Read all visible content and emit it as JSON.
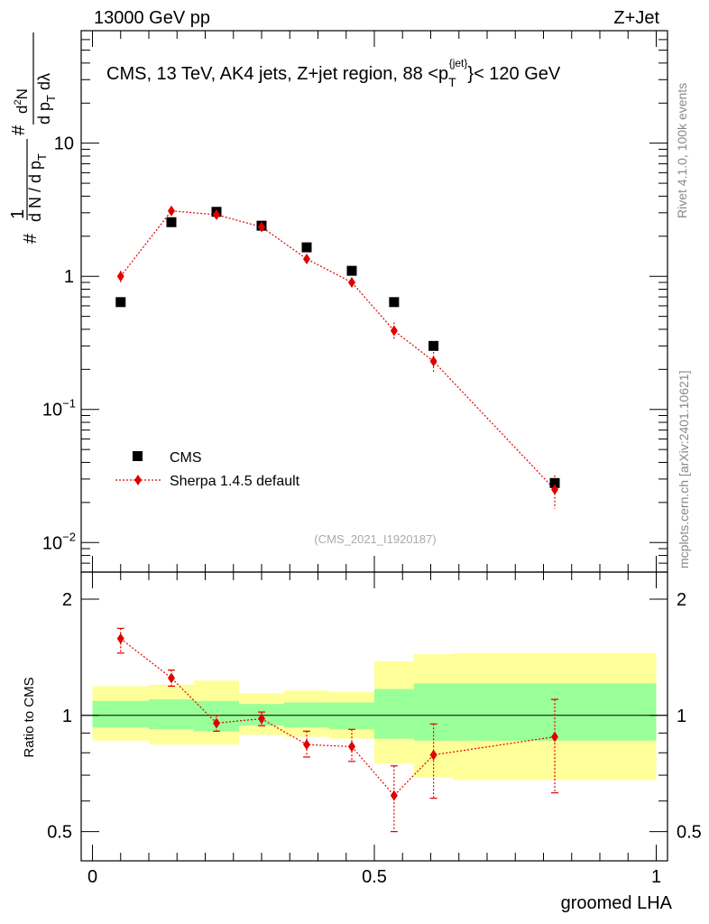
{
  "header": {
    "left": "13000 GeV pp",
    "right": "Z+Jet"
  },
  "side_labels": {
    "rivet": "Rivet 4.1.0,  100k events",
    "mcplots": "mcplots.cern.ch [arXiv:2401.10621]"
  },
  "chart_data": [
    {
      "type": "scatter",
      "title_main": "CMS, 13 TeV, AK4 jets, Z+jet region, 88 <p",
      "title_sub": "T",
      "title_sup": "{jet}",
      "title_end": "}< 120 GeV",
      "ylabel": "1/N dN/dp_T d²N/dp_T dλ",
      "yscale": "log",
      "ylim": [
        0.006,
        70
      ],
      "xlim": [
        -0.02,
        1.02
      ],
      "y_tick_labels": [
        {
          "value": 0.01,
          "base": "10",
          "exp": "−2"
        },
        {
          "value": 0.1,
          "base": "10",
          "exp": "−1"
        },
        {
          "value": 1,
          "base": "1",
          "exp": ""
        },
        {
          "value": 10,
          "base": "10",
          "exp": ""
        }
      ],
      "watermark": "(CMS_2021_I1920187)",
      "legend": {
        "position": "bottom-left",
        "cms": "CMS",
        "sherpa": "Sherpa 1.4.5 default"
      },
      "series": [
        {
          "name": "CMS",
          "x": [
            0.05,
            0.14,
            0.22,
            0.3,
            0.38,
            0.46,
            0.535,
            0.605,
            0.82
          ],
          "y": [
            0.64,
            2.55,
            3.05,
            2.4,
            1.65,
            1.1,
            0.64,
            0.3,
            0.028
          ]
        },
        {
          "name": "Sherpa 1.4.5 default",
          "x": [
            0.05,
            0.14,
            0.22,
            0.3,
            0.38,
            0.46,
            0.535,
            0.605,
            0.82
          ],
          "y": [
            1.0,
            3.1,
            2.9,
            2.35,
            1.35,
            0.9,
            0.39,
            0.23,
            0.025
          ],
          "err_lo": [
            0.9,
            2.9,
            2.75,
            2.22,
            1.25,
            0.82,
            0.34,
            0.19,
            0.018
          ],
          "err_hi": [
            1.1,
            3.3,
            3.05,
            2.48,
            1.45,
            0.98,
            0.45,
            0.27,
            0.032
          ]
        }
      ]
    },
    {
      "type": "scatter",
      "ylabel": "Ratio to CMS",
      "xlabel": "groomed LHA",
      "yscale": "log",
      "ylim": [
        0.42,
        2.35
      ],
      "xlim": [
        -0.02,
        1.02
      ],
      "y_tick_labels": [
        {
          "value": 0.5,
          "label": "0.5"
        },
        {
          "value": 1,
          "label": "1"
        },
        {
          "value": 2,
          "label": "2"
        }
      ],
      "x_tick_labels": [
        {
          "value": 0,
          "label": "0"
        },
        {
          "value": 0.5,
          "label": "0.5"
        },
        {
          "value": 1,
          "label": "1"
        }
      ],
      "bands": {
        "edges": [
          0.0,
          0.1,
          0.18,
          0.26,
          0.34,
          0.42,
          0.5,
          0.57,
          0.64,
          1.0
        ],
        "green_lo": [
          0.93,
          0.92,
          0.91,
          0.94,
          0.93,
          0.92,
          0.87,
          0.86,
          0.86
        ],
        "green_hi": [
          1.09,
          1.1,
          1.09,
          1.07,
          1.08,
          1.08,
          1.17,
          1.21,
          1.21
        ],
        "yellow_lo": [
          0.86,
          0.84,
          0.84,
          0.89,
          0.88,
          0.87,
          0.75,
          0.69,
          0.68
        ],
        "yellow_hi": [
          1.19,
          1.2,
          1.23,
          1.14,
          1.16,
          1.15,
          1.38,
          1.44,
          1.45
        ]
      },
      "series": [
        {
          "name": "Sherpa 1.4.5 default / CMS",
          "x": [
            0.05,
            0.14,
            0.22,
            0.3,
            0.38,
            0.46,
            0.535,
            0.605,
            0.82
          ],
          "y": [
            1.58,
            1.25,
            0.955,
            0.98,
            0.84,
            0.83,
            0.62,
            0.79,
            0.88
          ],
          "err_lo": [
            1.45,
            1.19,
            0.91,
            0.94,
            0.78,
            0.76,
            0.5,
            0.61,
            0.63
          ],
          "err_hi": [
            1.68,
            1.31,
            1.0,
            1.02,
            0.91,
            0.92,
            0.74,
            0.95,
            1.1
          ]
        }
      ]
    }
  ]
}
